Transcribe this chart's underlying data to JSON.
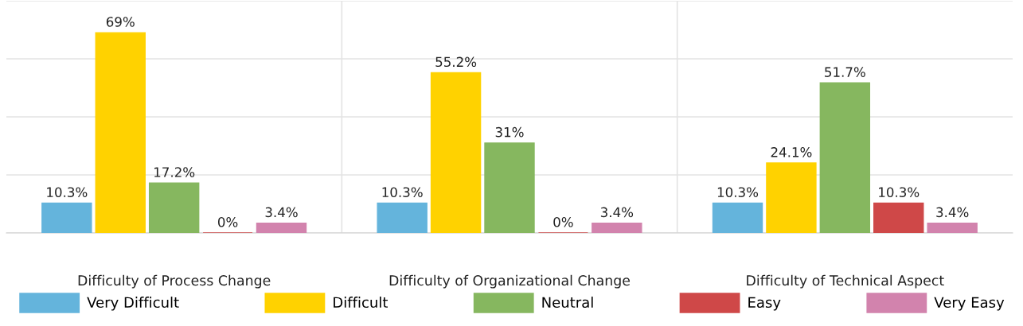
{
  "chart_data": {
    "type": "bar",
    "categories": [
      "Difficulty of Process Change",
      "Difficulty of Organizational Change",
      "Difficulty of Technical Aspect"
    ],
    "series": [
      {
        "name": "Very Difficult",
        "color": "#64b4dc",
        "values": [
          10.3,
          10.3,
          10.3
        ],
        "value_labels": [
          "10.3%",
          "10.3%",
          "10.3%"
        ]
      },
      {
        "name": "Difficult",
        "color": "#ffd200",
        "values": [
          69,
          55.2,
          24.1
        ],
        "value_labels": [
          "69%",
          "55.2%",
          "24.1%"
        ]
      },
      {
        "name": "Neutral",
        "color": "#86b75f",
        "values": [
          17.2,
          31,
          51.7
        ],
        "value_labels": [
          "17.2%",
          "31%",
          "51.7%"
        ]
      },
      {
        "name": "Easy",
        "color": "#cf4848",
        "values": [
          0,
          0,
          10.3
        ],
        "value_labels": [
          "0%",
          "0%",
          "10.3%"
        ]
      },
      {
        "name": "Very Easy",
        "color": "#d283ad",
        "values": [
          3.4,
          3.4,
          3.4
        ],
        "value_labels": [
          "3.4%",
          "3.4%",
          "3.4%"
        ]
      }
    ],
    "ylim": [
      0,
      80
    ],
    "yticks": [
      {
        "value": 0,
        "label": null
      },
      {
        "value": 20,
        "label": null
      },
      {
        "value": 40,
        "label": null
      },
      {
        "value": 60,
        "label": null
      },
      {
        "value": 80,
        "label": null
      }
    ],
    "grid": true,
    "legend": "bottom"
  }
}
